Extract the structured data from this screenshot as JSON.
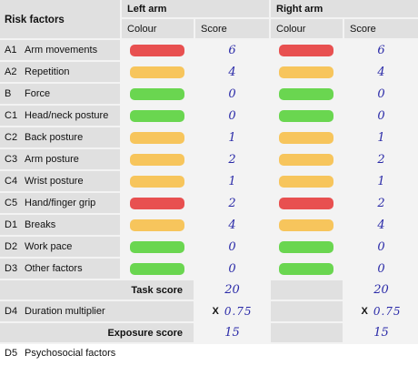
{
  "header": {
    "risk_factors": "Risk factors",
    "left_arm": "Left arm",
    "right_arm": "Right arm",
    "colour": "Colour",
    "score": "Score"
  },
  "colors": {
    "red": "#e85050",
    "amber": "#f7c55c",
    "green": "#6ad650"
  },
  "rows": [
    {
      "code": "A1",
      "label": "Arm movements",
      "left_colour": "red",
      "left_score": "6",
      "right_colour": "red",
      "right_score": "6"
    },
    {
      "code": "A2",
      "label": "Repetition",
      "left_colour": "amber",
      "left_score": "4",
      "right_colour": "amber",
      "right_score": "4"
    },
    {
      "code": "B",
      "label": "Force",
      "left_colour": "green",
      "left_score": "0",
      "right_colour": "green",
      "right_score": "0"
    },
    {
      "code": "C1",
      "label": "Head/neck posture",
      "left_colour": "green",
      "left_score": "0",
      "right_colour": "green",
      "right_score": "0"
    },
    {
      "code": "C2",
      "label": "Back posture",
      "left_colour": "amber",
      "left_score": "1",
      "right_colour": "amber",
      "right_score": "1"
    },
    {
      "code": "C3",
      "label": "Arm posture",
      "left_colour": "amber",
      "left_score": "2",
      "right_colour": "amber",
      "right_score": "2"
    },
    {
      "code": "C4",
      "label": "Wrist posture",
      "left_colour": "amber",
      "left_score": "1",
      "right_colour": "amber",
      "right_score": "1"
    },
    {
      "code": "C5",
      "label": "Hand/finger grip",
      "left_colour": "red",
      "left_score": "2",
      "right_colour": "red",
      "right_score": "2"
    },
    {
      "code": "D1",
      "label": "Breaks",
      "left_colour": "amber",
      "left_score": "4",
      "right_colour": "amber",
      "right_score": "4"
    },
    {
      "code": "D2",
      "label": "Work pace",
      "left_colour": "green",
      "left_score": "0",
      "right_colour": "green",
      "right_score": "0"
    },
    {
      "code": "D3",
      "label": "Other factors",
      "left_colour": "green",
      "left_score": "0",
      "right_colour": "green",
      "right_score": "0"
    }
  ],
  "task_score": {
    "label": "Task score",
    "left": "20",
    "right": "20"
  },
  "duration": {
    "code": "D4",
    "label": "Duration multiplier",
    "x": "X",
    "left": "0.75",
    "right": "0.75"
  },
  "exposure_score": {
    "label": "Exposure score",
    "left": "15",
    "right": "15"
  },
  "psychosocial": {
    "code": "D5",
    "label": "Psychosocial factors"
  }
}
